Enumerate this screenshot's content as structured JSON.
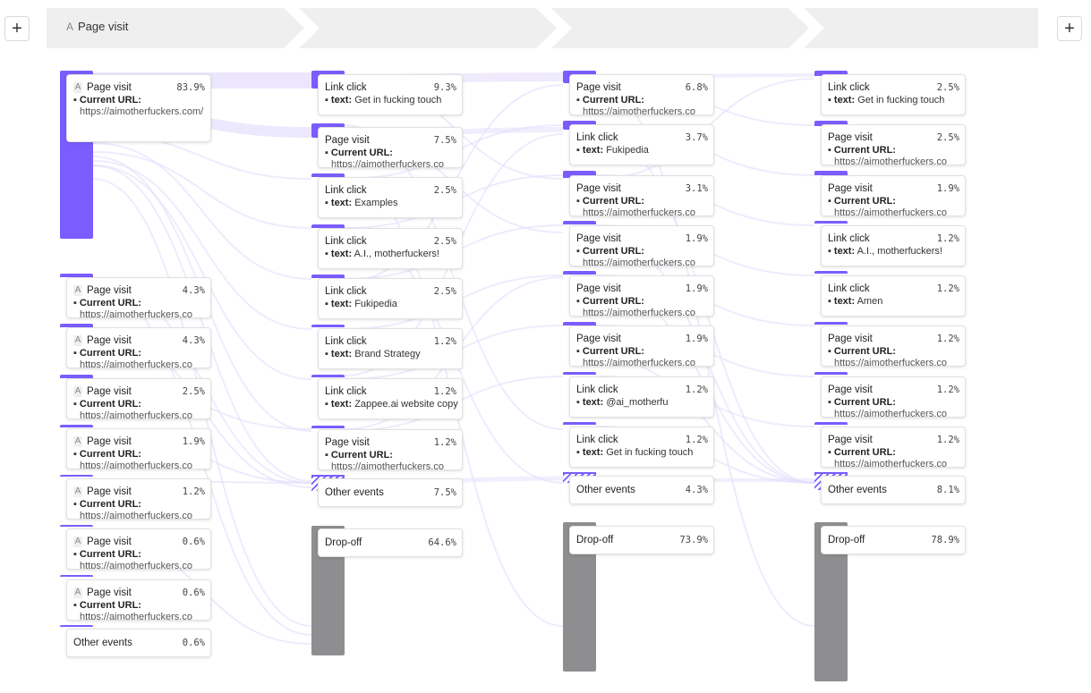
{
  "header": {
    "step_label": "Page visit",
    "step_icon": "A"
  },
  "buttons": {
    "add_left": "+",
    "add_right": "+"
  },
  "labels": {
    "current_url": "Current URL:",
    "text": "text:",
    "bullet": "▪"
  },
  "colors": {
    "accent": "#7b5cff",
    "dropoff": "#8e8e90",
    "flow": "#e4defc"
  },
  "columns": [
    {
      "cards": [
        {
          "title": "Page visit",
          "icon": "A",
          "pct": "83.9%",
          "type": "url",
          "value": "https://aimotherfuckers.com/"
        },
        {
          "title": "Page visit",
          "icon": "A",
          "pct": "4.3%",
          "type": "url",
          "value": "https://aimotherfuckers.co"
        },
        {
          "title": "Page visit",
          "icon": "A",
          "pct": "4.3%",
          "type": "url",
          "value": "https://aimotherfuckers.co"
        },
        {
          "title": "Page visit",
          "icon": "A",
          "pct": "2.5%",
          "type": "url",
          "value": "https://aimotherfuckers.co"
        },
        {
          "title": "Page visit",
          "icon": "A",
          "pct": "1.9%",
          "type": "url",
          "value": "https://aimotherfuckers.co"
        },
        {
          "title": "Page visit",
          "icon": "A",
          "pct": "1.2%",
          "type": "url",
          "value": "https://aimotherfuckers.co"
        },
        {
          "title": "Page visit",
          "icon": "A",
          "pct": "0.6%",
          "type": "url",
          "value": "https://aimotherfuckers.co"
        },
        {
          "title": "Page visit",
          "icon": "A",
          "pct": "0.6%",
          "type": "url",
          "value": "https://aimotherfuckers.co"
        },
        {
          "title": "Other events",
          "pct": "0.6%",
          "type": "other"
        }
      ]
    },
    {
      "cards": [
        {
          "title": "Link click",
          "pct": "9.3%",
          "type": "text",
          "value": "Get in fucking touch"
        },
        {
          "title": "Page visit",
          "pct": "7.5%",
          "type": "url",
          "value": "https://aimotherfuckers.co"
        },
        {
          "title": "Link click",
          "pct": "2.5%",
          "type": "text",
          "value": "Examples"
        },
        {
          "title": "Link click",
          "pct": "2.5%",
          "type": "text",
          "value": "A.I., motherfuckers!"
        },
        {
          "title": "Link click",
          "pct": "2.5%",
          "type": "text",
          "value": "Fukipedia"
        },
        {
          "title": "Link click",
          "pct": "1.2%",
          "type": "text",
          "value": "Brand Strategy"
        },
        {
          "title": "Link click",
          "pct": "1.2%",
          "type": "text",
          "value": "Zappee.ai website copy"
        },
        {
          "title": "Page visit",
          "pct": "1.2%",
          "type": "url",
          "value": "https://aimotherfuckers.co"
        },
        {
          "title": "Other events",
          "pct": "7.5%",
          "type": "other"
        },
        {
          "title": "Drop-off",
          "pct": "64.6%",
          "type": "dropoff"
        }
      ]
    },
    {
      "cards": [
        {
          "title": "Page visit",
          "pct": "6.8%",
          "type": "url",
          "value": "https://aimotherfuckers.co"
        },
        {
          "title": "Link click",
          "pct": "3.7%",
          "type": "text",
          "value": "Fukipedia"
        },
        {
          "title": "Page visit",
          "pct": "3.1%",
          "type": "url",
          "value": "https://aimotherfuckers.co"
        },
        {
          "title": "Page visit",
          "pct": "1.9%",
          "type": "url",
          "value": "https://aimotherfuckers.co"
        },
        {
          "title": "Page visit",
          "pct": "1.9%",
          "type": "url",
          "value": "https://aimotherfuckers.co"
        },
        {
          "title": "Page visit",
          "pct": "1.9%",
          "type": "url",
          "value": "https://aimotherfuckers.co"
        },
        {
          "title": "Link click",
          "pct": "1.2%",
          "type": "text",
          "value": "@ai_motherfu"
        },
        {
          "title": "Link click",
          "pct": "1.2%",
          "type": "text",
          "value": "Get in fucking touch"
        },
        {
          "title": "Other events",
          "pct": "4.3%",
          "type": "other"
        },
        {
          "title": "Drop-off",
          "pct": "73.9%",
          "type": "dropoff"
        }
      ]
    },
    {
      "cards": [
        {
          "title": "Link click",
          "pct": "2.5%",
          "type": "text",
          "value": "Get in fucking touch"
        },
        {
          "title": "Page visit",
          "pct": "2.5%",
          "type": "url",
          "value": "https://aimotherfuckers.co"
        },
        {
          "title": "Page visit",
          "pct": "1.9%",
          "type": "url",
          "value": "https://aimotherfuckers.co"
        },
        {
          "title": "Link click",
          "pct": "1.2%",
          "type": "text",
          "value": "A.I., motherfuckers!"
        },
        {
          "title": "Link click",
          "pct": "1.2%",
          "type": "text",
          "value": "Amen"
        },
        {
          "title": "Page visit",
          "pct": "1.2%",
          "type": "url",
          "value": "https://aimotherfuckers.co"
        },
        {
          "title": "Page visit",
          "pct": "1.2%",
          "type": "url",
          "value": "https://aimotherfuckers.co"
        },
        {
          "title": "Page visit",
          "pct": "1.2%",
          "type": "url",
          "value": "https://aimotherfuckers.co"
        },
        {
          "title": "Other events",
          "pct": "8.1%",
          "type": "other"
        },
        {
          "title": "Drop-off",
          "pct": "78.9%",
          "type": "dropoff"
        }
      ]
    }
  ]
}
